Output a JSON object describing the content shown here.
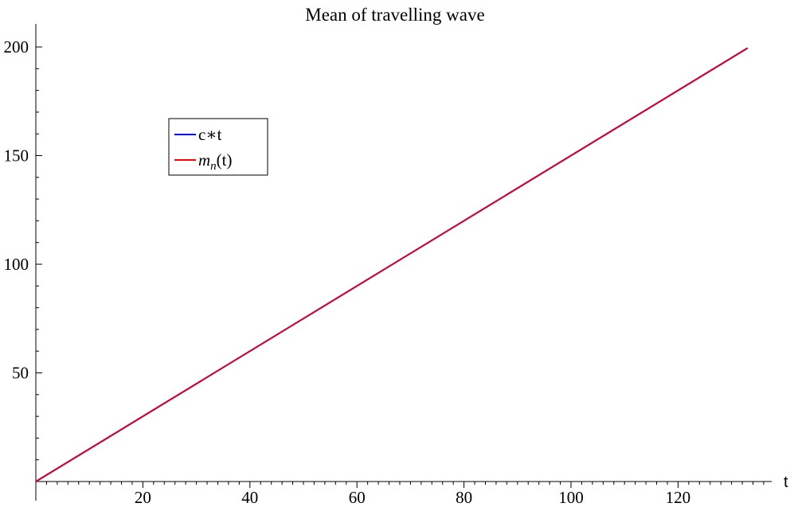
{
  "chart_data": {
    "type": "line",
    "title": "Mean of travelling wave",
    "xlabel": "t",
    "ylabel": "",
    "xlim": [
      0,
      140
    ],
    "ylim": [
      0,
      210
    ],
    "x_ticks": [
      20,
      40,
      60,
      80,
      100,
      120
    ],
    "y_ticks": [
      50,
      100,
      150,
      200
    ],
    "x_minor_step": 2,
    "y_minor_step": 10,
    "grid": false,
    "legend_position": "upper-left",
    "legend": [
      {
        "label": "c∗t",
        "color": "#0000ff"
      },
      {
        "label_main": "m",
        "label_sub": "n",
        "label_rest": "(t)",
        "color": "#ff0000"
      }
    ],
    "series": [
      {
        "name": "c∗t",
        "color": "#0000ff",
        "x": [
          0,
          133
        ],
        "y": [
          0,
          199.5
        ]
      },
      {
        "name": "m_n(t)",
        "color": "#ff0000",
        "x": [
          0,
          133
        ],
        "y": [
          0,
          199.5
        ]
      }
    ]
  }
}
